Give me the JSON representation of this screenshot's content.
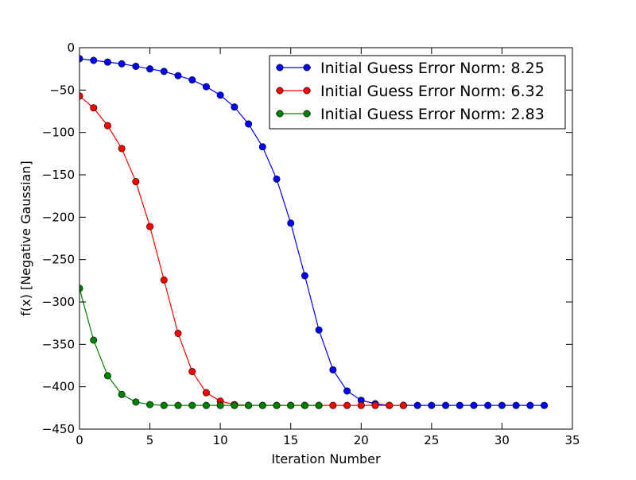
{
  "chart_data": {
    "type": "line",
    "title": "",
    "xlabel": "Iteration Number",
    "ylabel": "f(x) [Negative Gaussian]",
    "xlim": [
      0,
      35
    ],
    "ylim": [
      -450,
      0
    ],
    "xticks": [
      0,
      5,
      10,
      15,
      20,
      25,
      30,
      35
    ],
    "yticks": [
      0,
      -50,
      -100,
      -150,
      -200,
      -250,
      -300,
      -350,
      -400,
      -450
    ],
    "grid": false,
    "legend_position": "top-right",
    "series": [
      {
        "name": "Initial Guess Error Norm: 8.25",
        "color": "#0000ff",
        "x": [
          0,
          1,
          2,
          3,
          4,
          5,
          6,
          7,
          8,
          9,
          10,
          11,
          12,
          13,
          14,
          15,
          16,
          17,
          18,
          19,
          20,
          21,
          22,
          23,
          24,
          25,
          26,
          27,
          28,
          29,
          30,
          31,
          32,
          33
        ],
        "y": [
          -13,
          -15,
          -17,
          -19,
          -22,
          -25,
          -28,
          -33,
          -38,
          -46,
          -56,
          -70,
          -90,
          -117,
          -155,
          -207,
          -269,
          -333,
          -380,
          -405,
          -416,
          -420,
          -422,
          -422,
          -422,
          -422,
          -422,
          -422,
          -422,
          -422,
          -422,
          -422,
          -422,
          -422
        ]
      },
      {
        "name": "Initial Guess Error Norm: 6.32",
        "color": "#ff0000",
        "x": [
          0,
          1,
          2,
          3,
          4,
          5,
          6,
          7,
          8,
          9,
          10,
          11,
          12,
          13,
          14,
          15,
          16,
          17,
          18,
          19,
          20,
          21,
          22,
          23
        ],
        "y": [
          -57,
          -71,
          -92,
          -119,
          -158,
          -211,
          -274,
          -337,
          -382,
          -407,
          -417,
          -421,
          -422,
          -422,
          -422,
          -422,
          -422,
          -422,
          -422,
          -422,
          -422,
          -422,
          -422,
          -422
        ]
      },
      {
        "name": "Initial Guess Error Norm: 2.83",
        "color": "#008000",
        "x": [
          0,
          1,
          2,
          3,
          4,
          5,
          6,
          7,
          8,
          9,
          10,
          11,
          12,
          13,
          14,
          15,
          16,
          17
        ],
        "y": [
          -284,
          -345,
          -387,
          -409,
          -418,
          -421,
          -422,
          -422,
          -422,
          -422,
          -422,
          -422,
          -422,
          -422,
          -422,
          -422,
          -422,
          -422
        ]
      }
    ]
  }
}
